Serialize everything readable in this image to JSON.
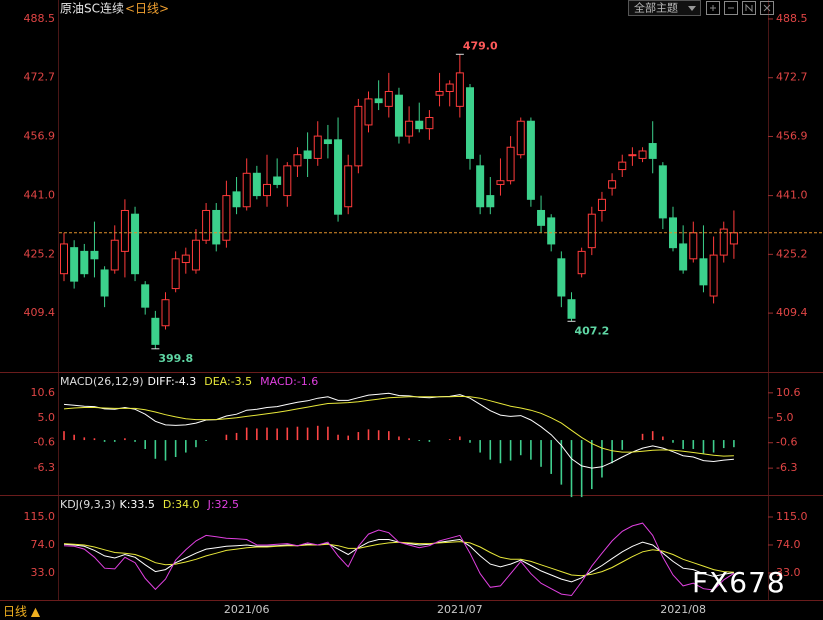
{
  "header": {
    "title": "原油SC连续",
    "period": "<日线>",
    "theme": "全部主题",
    "footer": "日线 ▲",
    "watermark": "FX678"
  },
  "chart_data": [
    {
      "type": "candlestick",
      "categories": [
        null,
        null,
        null,
        null,
        null,
        null,
        null,
        null,
        null,
        null,
        null,
        null,
        null,
        null,
        null,
        null,
        null,
        null,
        "2021/06",
        null,
        null,
        null,
        null,
        null,
        null,
        null,
        null,
        null,
        null,
        null,
        null,
        null,
        null,
        null,
        null,
        null,
        null,
        null,
        null,
        "2021/07",
        null,
        null,
        null,
        null,
        null,
        null,
        null,
        null,
        null,
        null,
        null,
        null,
        null,
        null,
        null,
        null,
        null,
        null,
        null,
        null,
        null,
        "2021/08",
        null,
        null,
        null,
        null,
        null
      ],
      "open": [
        420,
        427,
        426,
        426,
        421,
        421,
        426,
        436,
        417,
        408,
        406,
        416,
        423,
        421,
        429,
        437,
        429,
        442,
        438,
        447,
        441,
        446,
        441,
        449,
        453,
        451,
        456,
        456,
        438,
        449,
        460,
        467,
        465,
        468,
        457,
        461,
        459,
        468,
        469,
        465,
        470,
        449,
        441,
        444,
        445,
        452,
        461,
        437,
        435,
        424,
        413,
        420,
        427,
        437,
        443,
        448,
        452,
        451,
        455,
        449,
        435,
        428,
        424,
        424,
        414,
        425,
        428
      ],
      "high": [
        431,
        429,
        428,
        434,
        422,
        433,
        440,
        438,
        418,
        410,
        415,
        426,
        427,
        432,
        439,
        439,
        445,
        446,
        451,
        449,
        452,
        451,
        450,
        454,
        458,
        461,
        460,
        462,
        452,
        467,
        469,
        472,
        474,
        470,
        465,
        466,
        464,
        474,
        472,
        479,
        471,
        452,
        446,
        451,
        457,
        462,
        462,
        441,
        436,
        426,
        415,
        427,
        438,
        442,
        447,
        452,
        454,
        454,
        461,
        450,
        438,
        433,
        434,
        433,
        430,
        434,
        437
      ],
      "low": [
        418,
        416,
        419,
        419,
        411,
        420,
        419,
        418,
        409,
        399.8,
        405,
        415,
        420,
        420,
        428,
        426,
        427,
        436,
        437,
        440,
        438,
        443,
        438,
        446,
        446,
        449,
        451,
        434,
        436,
        447,
        458,
        464,
        462,
        455,
        455,
        458,
        456,
        465,
        465,
        462,
        448,
        436,
        436,
        441,
        444,
        451,
        438,
        431,
        426,
        411,
        407.2,
        419,
        425,
        434,
        441,
        446,
        449,
        450,
        447,
        432,
        426,
        420,
        423,
        415,
        412,
        423,
        424
      ],
      "close": [
        428,
        418,
        420,
        424,
        414,
        429,
        437,
        420,
        411,
        401,
        413,
        424,
        425,
        429,
        437,
        428,
        441,
        438,
        447,
        441,
        444,
        444,
        449,
        452,
        451,
        457,
        455,
        436,
        449,
        465,
        467,
        466,
        469,
        457,
        461,
        459,
        462,
        469,
        471,
        474,
        451,
        438,
        438,
        445,
        454,
        461,
        440,
        433,
        428,
        414,
        408,
        426,
        436,
        440,
        445,
        450,
        452,
        453,
        451,
        435,
        427,
        421,
        431,
        417,
        425,
        432,
        431
      ],
      "up_color": "#ff3b3b",
      "down_color": "#3cd18c",
      "last_line_color": "#e0902a",
      "ylim": [
        394.1,
        493.6
      ],
      "yticks": [
        488.5,
        472.7,
        456.9,
        {
          "value": 441,
          "label": "441.0"
        },
        425.2,
        409.4
      ],
      "annotations": [
        {
          "value": 479,
          "label": "479.0",
          "color": "#ff5a5a"
        },
        {
          "value": 399.8,
          "label": "399.8",
          "color": "#5fd6a4"
        },
        {
          "value": 407.2,
          "label": "407.2",
          "color": "#5fd6a4"
        }
      ]
    },
    {
      "type": "combo",
      "title": "MACD(26,12,9)",
      "series": [
        {
          "name": "DIFF:-4.3",
          "color": "#ffffff",
          "values": [
            8.0,
            7.8,
            7.6,
            7.5,
            7.0,
            6.9,
            7.3,
            6.9,
            5.8,
            4.2,
            3.4,
            3.3,
            3.4,
            3.8,
            4.5,
            4.6,
            5.4,
            5.8,
            6.7,
            6.9,
            7.3,
            7.5,
            8.0,
            8.5,
            8.8,
            9.4,
            9.7,
            8.9,
            8.9,
            9.5,
            10.1,
            10.3,
            10.5,
            10.0,
            9.9,
            9.6,
            9.5,
            9.7,
            9.8,
            10.2,
            9.4,
            8.0,
            6.6,
            5.6,
            5.3,
            5.5,
            4.5,
            3.0,
            1.2,
            -1.2,
            -4.2,
            -5.8,
            -6.3,
            -6.0,
            -5.0,
            -3.8,
            -2.7,
            -1.8,
            -1.3,
            -1.8,
            -2.6,
            -3.5,
            -3.8,
            -4.6,
            -4.8,
            -4.5,
            -4.3
          ]
        },
        {
          "name": "DEA:-3.5",
          "color": "#e8e83a",
          "values": [
            7.0,
            7.2,
            7.3,
            7.3,
            7.2,
            7.1,
            7.1,
            7.1,
            6.8,
            6.3,
            5.7,
            5.2,
            4.8,
            4.6,
            4.6,
            4.6,
            4.8,
            5.0,
            5.3,
            5.6,
            5.9,
            6.2,
            6.6,
            7.0,
            7.4,
            7.8,
            8.2,
            8.3,
            8.4,
            8.6,
            8.9,
            9.2,
            9.5,
            9.6,
            9.7,
            9.7,
            9.7,
            9.7,
            9.7,
            9.8,
            9.7,
            9.4,
            8.8,
            8.2,
            7.6,
            7.2,
            6.7,
            6.0,
            5.0,
            3.8,
            2.2,
            0.6,
            -0.8,
            -1.8,
            -2.4,
            -2.7,
            -2.7,
            -2.5,
            -2.3,
            -2.2,
            -2.3,
            -2.5,
            -2.8,
            -3.1,
            -3.4,
            -3.6,
            -3.5
          ]
        },
        {
          "name": "MACD:-1.6",
          "color": "#e040e0",
          "kind": "bar",
          "up_color": "#ff4545",
          "down_color": "#3fcf8e",
          "values": [
            2.0,
            1.2,
            0.6,
            0.4,
            -0.4,
            -0.4,
            0.4,
            -0.4,
            -2.0,
            -4.2,
            -4.6,
            -3.8,
            -2.8,
            -1.6,
            -0.2,
            0,
            1.2,
            1.6,
            2.8,
            2.6,
            2.8,
            2.6,
            2.8,
            3.0,
            2.8,
            3.2,
            3.0,
            1.2,
            1.0,
            1.8,
            2.4,
            2.2,
            2.0,
            0.8,
            0.4,
            -0.2,
            -0.4,
            0,
            0.2,
            0.8,
            -0.6,
            -2.8,
            -4.4,
            -5.2,
            -4.6,
            -3.4,
            -4.4,
            -6.0,
            -7.6,
            -10.0,
            -12.8,
            -12.8,
            -11.0,
            -8.4,
            -5.2,
            -2.2,
            0,
            1.4,
            2.0,
            0.8,
            -0.6,
            -2.0,
            -2.0,
            -3.0,
            -2.8,
            -1.8,
            -1.6
          ]
        }
      ],
      "ylim": [
        -13,
        14.6
      ],
      "yticks": [
        10.6,
        {
          "value": 5,
          "label": "5.0"
        },
        -0.6,
        -6.3
      ]
    },
    {
      "type": "line",
      "title": "KDJ(9,3,3)",
      "series": [
        {
          "name": "K:33.5",
          "color": "#ffffff",
          "values": [
            75,
            74,
            72,
            66,
            58,
            55,
            60,
            56,
            45,
            35,
            38,
            48,
            55,
            62,
            68,
            70,
            72,
            73,
            74,
            72,
            72,
            73,
            74,
            73,
            75,
            74,
            76,
            68,
            60,
            70,
            78,
            82,
            82,
            78,
            76,
            74,
            75,
            78,
            80,
            82,
            72,
            58,
            46,
            42,
            46,
            52,
            44,
            36,
            30,
            24,
            20,
            26,
            35,
            44,
            54,
            64,
            72,
            78,
            74,
            62,
            50,
            40,
            38,
            32,
            28,
            31,
            33.5
          ]
        },
        {
          "name": "D:34.0",
          "color": "#e8e83a",
          "values": [
            76,
            75,
            74,
            71,
            67,
            63,
            62,
            60,
            55,
            48,
            45,
            46,
            49,
            53,
            58,
            62,
            66,
            68,
            70,
            71,
            71,
            72,
            73,
            73,
            74,
            74,
            75,
            73,
            69,
            69,
            72,
            75,
            77,
            78,
            77,
            76,
            76,
            77,
            78,
            79,
            77,
            71,
            63,
            56,
            53,
            53,
            50,
            45,
            40,
            35,
            30,
            29,
            31,
            35,
            41,
            49,
            57,
            64,
            67,
            65,
            60,
            53,
            48,
            43,
            38,
            35,
            34.0
          ]
        },
        {
          "name": "J:32.5",
          "color": "#e040e0",
          "values": [
            73,
            72,
            68,
            56,
            40,
            39,
            56,
            48,
            25,
            9,
            24,
            52,
            67,
            80,
            88,
            86,
            84,
            83,
            82,
            74,
            74,
            75,
            76,
            73,
            77,
            74,
            78,
            58,
            42,
            72,
            90,
            96,
            92,
            78,
            74,
            70,
            73,
            80,
            84,
            88,
            62,
            32,
            12,
            14,
            32,
            50,
            32,
            18,
            10,
            2,
            0,
            20,
            43,
            62,
            80,
            94,
            102,
            106,
            88,
            56,
            30,
            14,
            18,
            10,
            8,
            23,
            32.5
          ]
        }
      ],
      "ylim": [
        -13.9,
        142.8
      ],
      "yticks": [
        {
          "value": 115,
          "label": "115.0"
        },
        {
          "value": 74,
          "label": "74.0"
        },
        {
          "value": 33,
          "label": "33.0"
        }
      ]
    }
  ]
}
